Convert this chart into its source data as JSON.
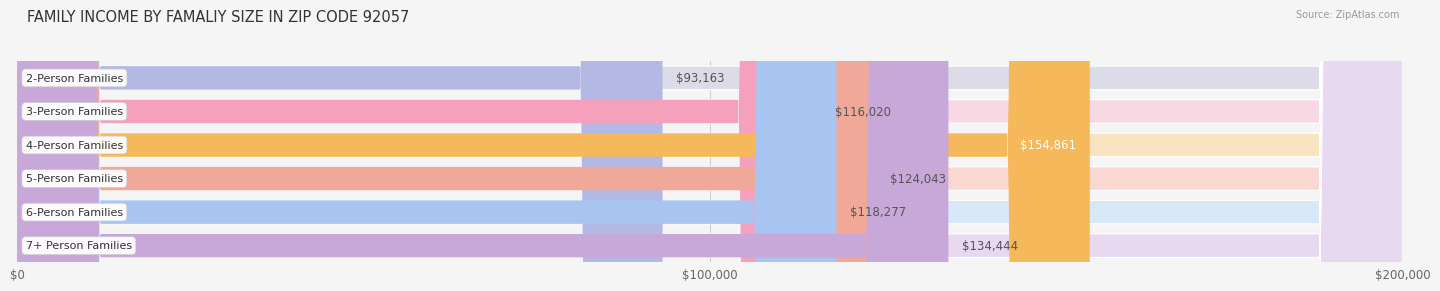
{
  "title": "FAMILY INCOME BY FAMALIY SIZE IN ZIP CODE 92057",
  "source": "Source: ZipAtlas.com",
  "categories": [
    "2-Person Families",
    "3-Person Families",
    "4-Person Families",
    "5-Person Families",
    "6-Person Families",
    "7+ Person Families"
  ],
  "values": [
    93163,
    116020,
    154861,
    124043,
    118277,
    134444
  ],
  "labels": [
    "$93,163",
    "$116,020",
    "$154,861",
    "$124,043",
    "$118,277",
    "$134,444"
  ],
  "bar_colors": [
    "#b4b8e4",
    "#f5a0bc",
    "#f5b85a",
    "#f0a898",
    "#a8c4f0",
    "#c8a8d8"
  ],
  "bar_bg_colors": [
    "#dcdce8",
    "#f8d8e4",
    "#f8e4c0",
    "#f8d8d0",
    "#d8e8f8",
    "#e8d8f0"
  ],
  "background_color": "#f5f5f5",
  "xlim": [
    0,
    200000
  ],
  "xtick_labels": [
    "$0",
    "$100,000",
    "$200,000"
  ],
  "xtick_vals": [
    0,
    100000,
    200000
  ],
  "title_fontsize": 10.5,
  "label_fontsize": 8.5,
  "cat_fontsize": 8,
  "bar_height": 0.7,
  "label_inside_threshold": 0.77
}
